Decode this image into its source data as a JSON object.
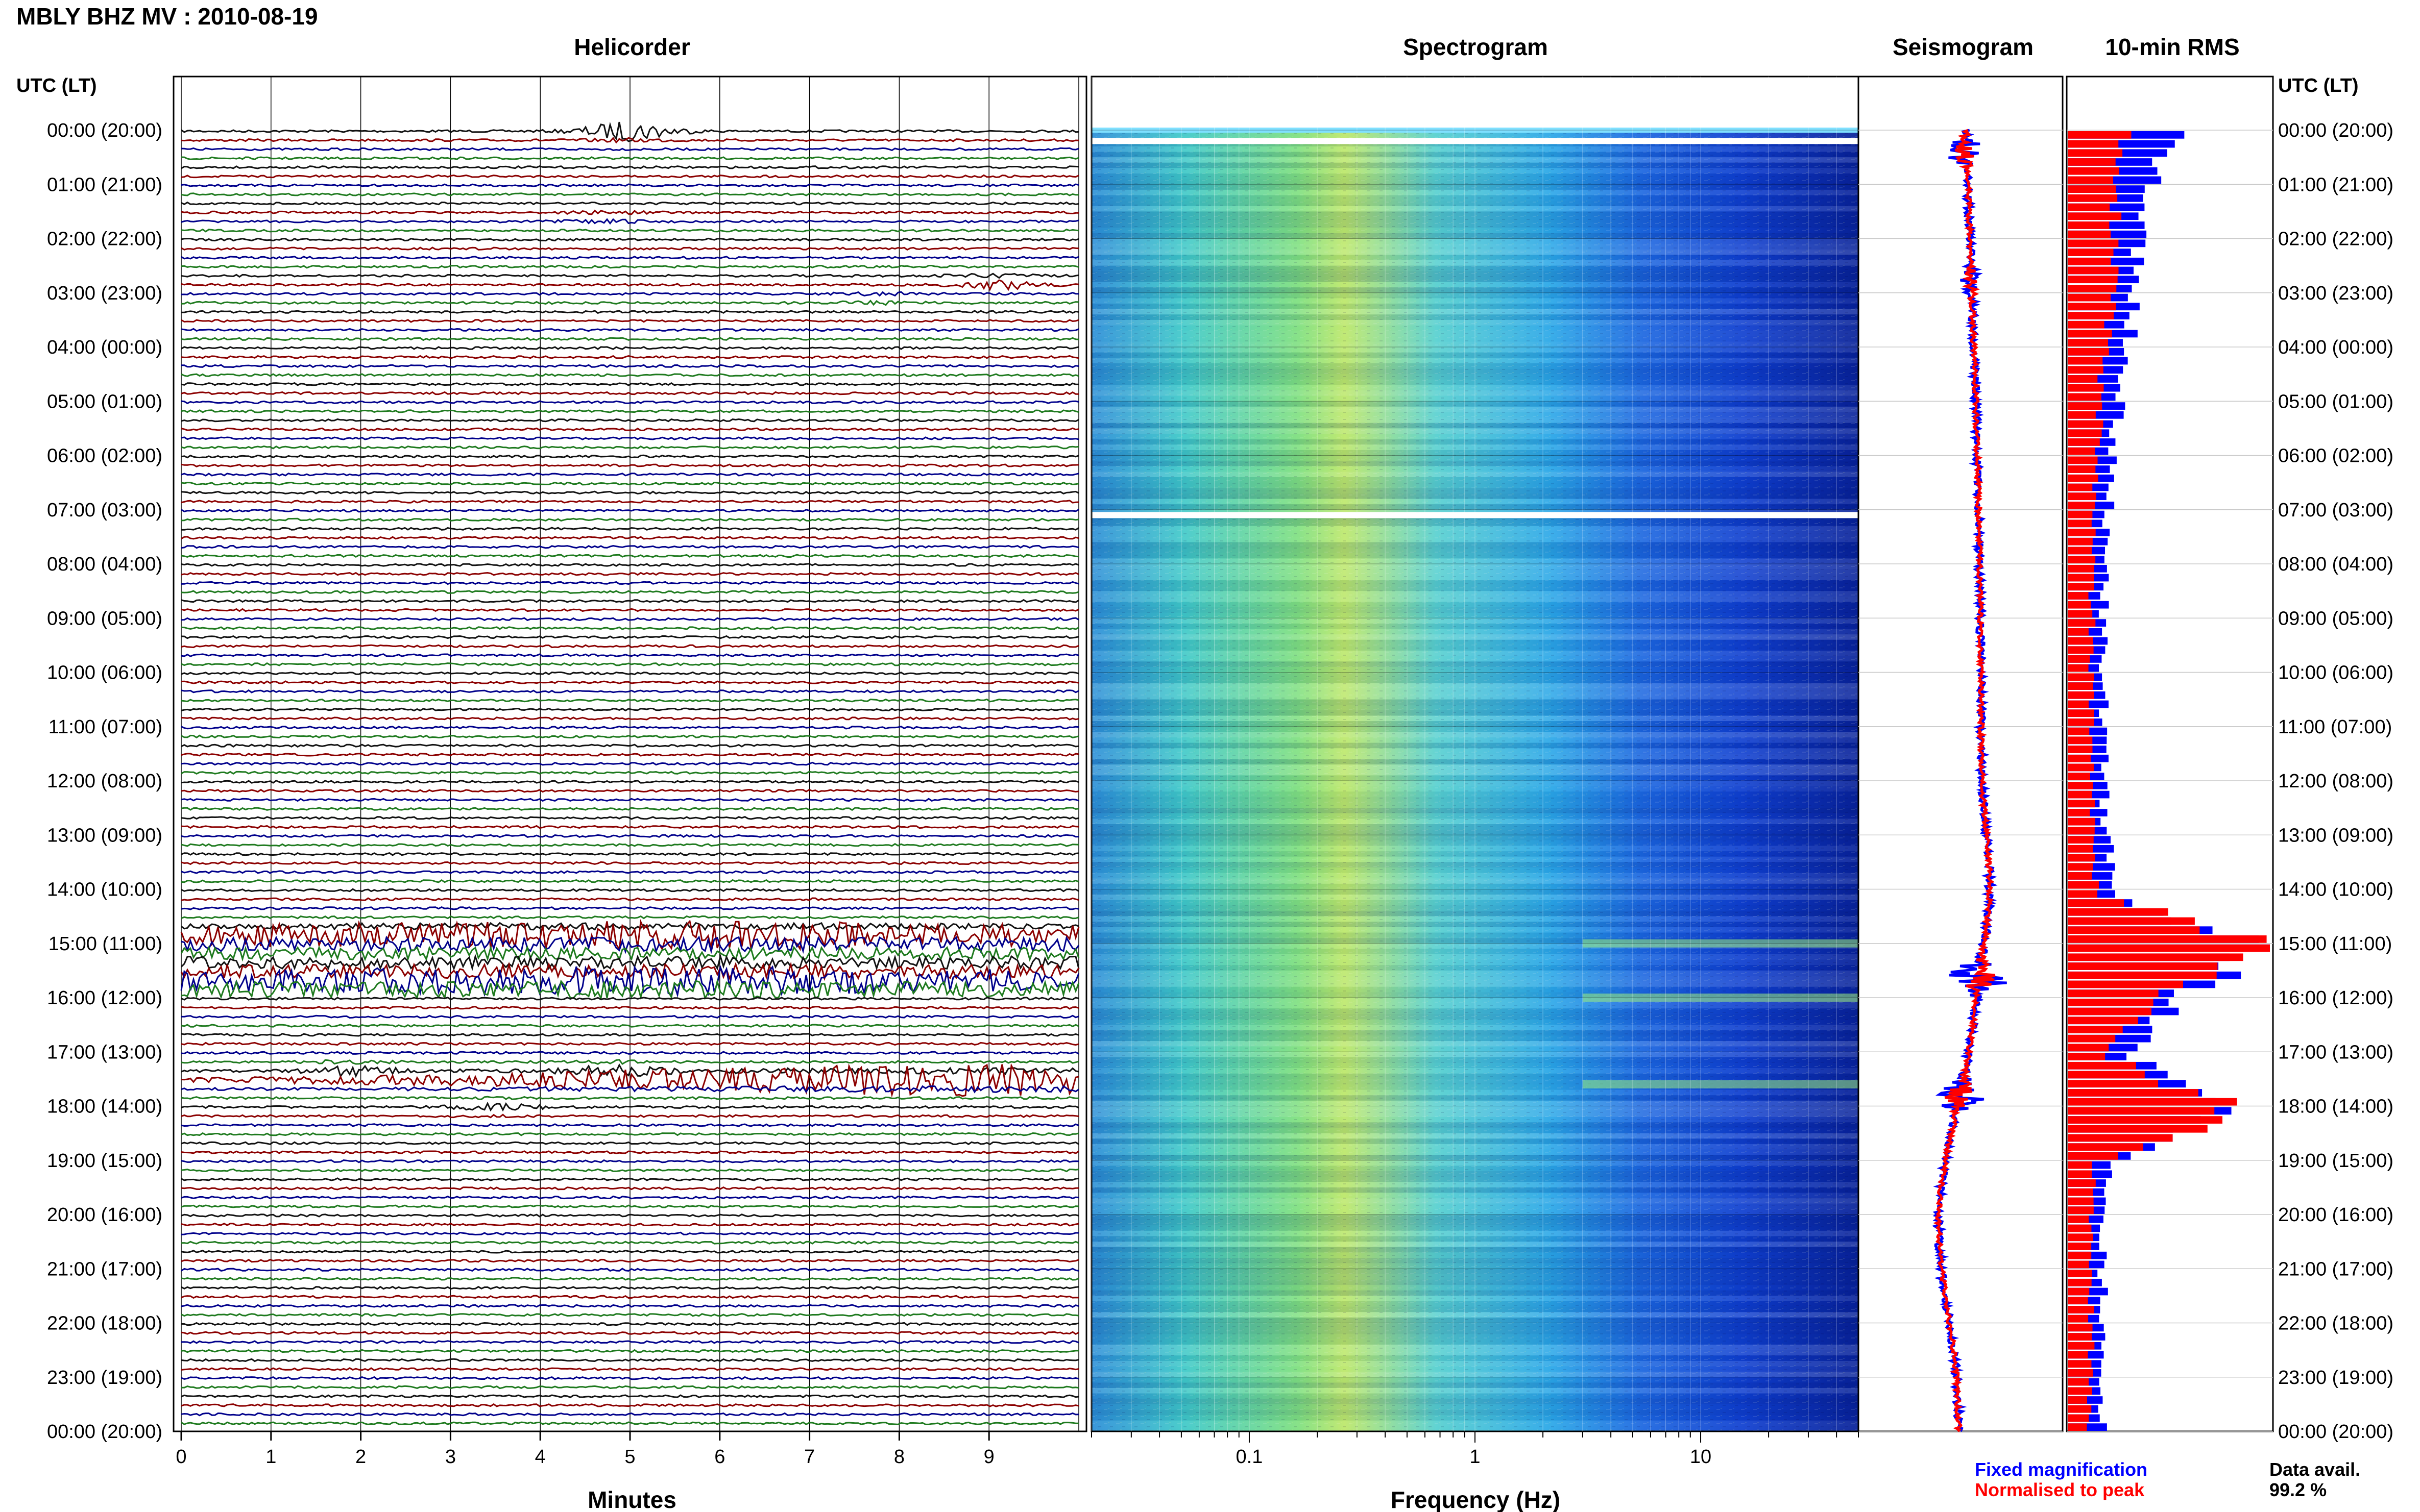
{
  "header": {
    "station_title": "MBLY BHZ MV : 2010-08-19",
    "axis_time_label": "UTC (LT)"
  },
  "colors": {
    "trace_black": "#111111",
    "trace_red": "#8b0000",
    "trace_blue": "#00008b",
    "trace_green": "#1e7a1e",
    "fixed_magnification": "#0000ff",
    "normalised_to_peak": "#ff0000",
    "grid": "#c8c8c8"
  },
  "time_axis": {
    "ticks": [
      "00:00 (20:00)",
      "01:00 (21:00)",
      "02:00 (22:00)",
      "03:00 (23:00)",
      "04:00 (00:00)",
      "05:00 (01:00)",
      "06:00 (02:00)",
      "07:00 (03:00)",
      "08:00 (04:00)",
      "09:00 (05:00)",
      "10:00 (06:00)",
      "11:00 (07:00)",
      "12:00 (08:00)",
      "13:00 (09:00)",
      "14:00 (10:00)",
      "15:00 (11:00)",
      "16:00 (12:00)",
      "17:00 (13:00)",
      "18:00 (14:00)",
      "19:00 (15:00)",
      "20:00 (16:00)",
      "21:00 (17:00)",
      "22:00 (18:00)",
      "23:00 (19:00)",
      "00:00 (20:00)"
    ]
  },
  "footer": {
    "legend_fixed": "Fixed magnification",
    "legend_normalised": "Normalised to peak",
    "data_avail_label": "Data avail.",
    "data_avail_value": "99.2 %"
  },
  "chart_data": [
    {
      "type": "line",
      "title": "Helicorder",
      "xlabel": "Minutes",
      "x_ticks": [
        "0",
        "1",
        "2",
        "3",
        "4",
        "5",
        "6",
        "7",
        "8",
        "9"
      ],
      "xlim": [
        0,
        10
      ],
      "rows_per_hour": 6,
      "trace_color_cycle": [
        "black",
        "red",
        "blue",
        "green"
      ],
      "events": [
        {
          "hour": 0.0,
          "minute": 5.0,
          "amp": 3
        },
        {
          "hour": 1.6,
          "minute": 4.7,
          "amp": 1
        },
        {
          "hour": 2.8,
          "minute": 9.1,
          "amp": 2
        },
        {
          "hour": 3.1,
          "minute": 7.8,
          "amp": 1
        },
        {
          "hour": 14.8,
          "minute": 5.0,
          "amp": 4
        },
        {
          "hour": 15.7,
          "minute": 5.0,
          "amp": 4
        },
        {
          "hour": 17.3,
          "minute": 1.9,
          "amp": 2
        },
        {
          "hour": 17.3,
          "minute": 4.8,
          "amp": 2
        },
        {
          "hour": 17.5,
          "minute": 9.5,
          "amp": 5
        },
        {
          "hour": 18.0,
          "minute": 3.5,
          "amp": 1
        }
      ]
    },
    {
      "type": "heatmap",
      "title": "Spectrogram",
      "xlabel": "Frequency (Hz)",
      "x_scale": "log",
      "xlim": [
        0.02,
        50
      ],
      "x_ticks": [
        "0.1",
        "1",
        "10"
      ],
      "x_tick_values": [
        0.1,
        1,
        10
      ],
      "data_gaps_hour": [
        0.2,
        7.1
      ],
      "bright_band_hours": [
        15.0,
        16.0,
        17.6
      ]
    },
    {
      "type": "line",
      "title": "Seismogram",
      "series": [
        {
          "name": "Fixed magnification",
          "color": "#0000ff"
        },
        {
          "name": "Normalised to peak",
          "color": "#ff0000"
        }
      ]
    },
    {
      "type": "bar",
      "title": "10-min RMS",
      "orientation": "horizontal",
      "bins_per_hour": 6,
      "series": [
        {
          "name": "Fixed magnification",
          "color": "#0000ff",
          "hourly_profile": [
            0.55,
            0.4,
            0.35,
            0.35,
            0.28,
            0.25,
            0.22,
            0.2,
            0.18,
            0.18,
            0.18,
            0.18,
            0.18,
            0.19,
            0.25,
            0.95,
            0.55,
            0.3,
            0.8,
            0.2,
            0.17,
            0.17,
            0.18,
            0.17,
            0.17
          ]
        },
        {
          "name": "Normalised to peak",
          "color": "#ff0000",
          "hourly_profile": [
            0.3,
            0.25,
            0.22,
            0.22,
            0.18,
            0.16,
            0.14,
            0.13,
            0.12,
            0.12,
            0.12,
            0.12,
            0.12,
            0.12,
            0.15,
            1.0,
            0.4,
            0.2,
            0.85,
            0.13,
            0.11,
            0.11,
            0.12,
            0.11,
            0.11
          ]
        }
      ]
    }
  ]
}
